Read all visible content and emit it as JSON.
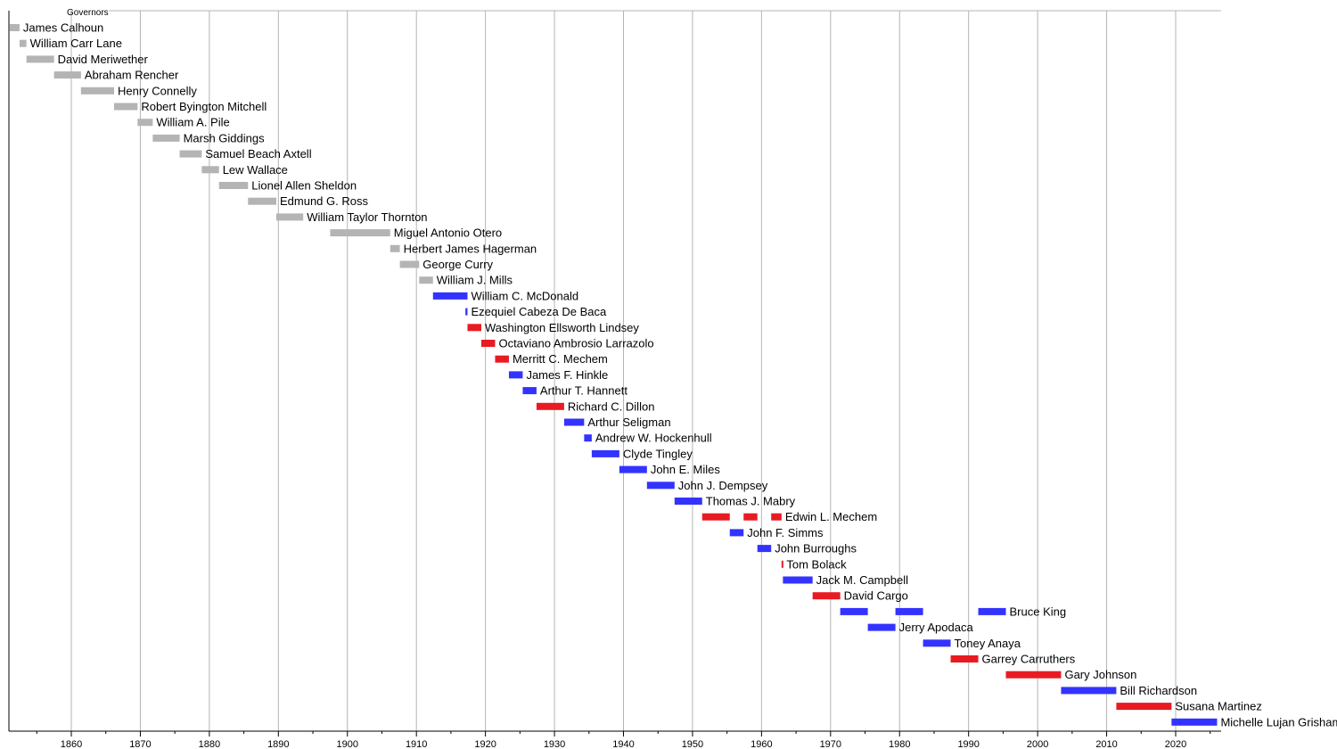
{
  "chart_data": {
    "type": "bar",
    "orientation": "horizontal",
    "title": "Governors",
    "xlim": [
      1849,
      2026
    ],
    "x_ticks": [
      1860,
      1870,
      1880,
      1890,
      1900,
      1910,
      1920,
      1930,
      1940,
      1950,
      1960,
      1970,
      1980,
      1990,
      2000,
      2010,
      2020
    ],
    "grid": true,
    "colors": {
      "gray": "#b4b4b4",
      "blue": "#3333ff",
      "red": "#e81b23",
      "grid": "#b4b4b4",
      "axis": "#000000"
    },
    "rows": [
      {
        "name": "James Calhoun",
        "color": "gray",
        "spans": [
          [
            1851,
            1852.5
          ]
        ]
      },
      {
        "name": "William Carr Lane",
        "color": "gray",
        "spans": [
          [
            1852.5,
            1853.5
          ]
        ]
      },
      {
        "name": "David Meriwether",
        "color": "gray",
        "spans": [
          [
            1853.5,
            1857.5
          ]
        ]
      },
      {
        "name": "Abraham Rencher",
        "color": "gray",
        "spans": [
          [
            1857.5,
            1861.4
          ]
        ]
      },
      {
        "name": "Henry Connelly",
        "color": "gray",
        "spans": [
          [
            1861.4,
            1866.2
          ]
        ]
      },
      {
        "name": "Robert Byington Mitchell",
        "color": "gray",
        "spans": [
          [
            1866.2,
            1869.6
          ]
        ]
      },
      {
        "name": "William A. Pile",
        "color": "gray",
        "spans": [
          [
            1869.6,
            1871.8
          ]
        ]
      },
      {
        "name": "Marsh Giddings",
        "color": "gray",
        "spans": [
          [
            1871.8,
            1875.7
          ]
        ]
      },
      {
        "name": "Samuel Beach Axtell",
        "color": "gray",
        "spans": [
          [
            1875.7,
            1878.9
          ]
        ]
      },
      {
        "name": "Lew Wallace",
        "color": "gray",
        "spans": [
          [
            1878.9,
            1881.4
          ]
        ]
      },
      {
        "name": "Lionel Allen Sheldon",
        "color": "gray",
        "spans": [
          [
            1881.4,
            1885.6
          ]
        ]
      },
      {
        "name": "Edmund G. Ross",
        "color": "gray",
        "spans": [
          [
            1885.6,
            1889.7
          ]
        ]
      },
      {
        "name": "William Taylor Thornton",
        "color": "gray",
        "spans": [
          [
            1889.7,
            1893.6
          ]
        ]
      },
      {
        "name": "Miguel Antonio Otero",
        "color": "gray",
        "spans": [
          [
            1897.5,
            1906.2
          ]
        ]
      },
      {
        "name": "Herbert James Hagerman",
        "color": "gray",
        "spans": [
          [
            1906.2,
            1907.6
          ]
        ]
      },
      {
        "name": "George Curry",
        "color": "gray",
        "spans": [
          [
            1907.6,
            1910.4
          ]
        ]
      },
      {
        "name": "William J. Mills",
        "color": "gray",
        "spans": [
          [
            1910.4,
            1912.4
          ]
        ]
      },
      {
        "name": "William C. McDonald",
        "color": "blue",
        "spans": [
          [
            1912.4,
            1917.4
          ]
        ]
      },
      {
        "name": "Ezequiel Cabeza De Baca",
        "color": "blue",
        "spans": [
          [
            1917.1,
            1917.4
          ]
        ]
      },
      {
        "name": "Washington Ellsworth Lindsey",
        "color": "red",
        "spans": [
          [
            1917.4,
            1919.4
          ]
        ]
      },
      {
        "name": "Octaviano Ambrosio Larrazolo",
        "color": "red",
        "spans": [
          [
            1919.4,
            1921.4
          ]
        ]
      },
      {
        "name": "Merritt C. Mechem",
        "color": "red",
        "spans": [
          [
            1921.4,
            1923.4
          ]
        ]
      },
      {
        "name": "James F. Hinkle",
        "color": "blue",
        "spans": [
          [
            1923.4,
            1925.4
          ]
        ]
      },
      {
        "name": "Arthur T. Hannett",
        "color": "blue",
        "spans": [
          [
            1925.4,
            1927.4
          ]
        ]
      },
      {
        "name": "Richard C. Dillon",
        "color": "red",
        "spans": [
          [
            1927.4,
            1931.4
          ]
        ]
      },
      {
        "name": "Arthur Seligman",
        "color": "blue",
        "spans": [
          [
            1931.4,
            1934.3
          ]
        ]
      },
      {
        "name": "Andrew W. Hockenhull",
        "color": "blue",
        "spans": [
          [
            1934.3,
            1935.4
          ]
        ]
      },
      {
        "name": "Clyde Tingley",
        "color": "blue",
        "spans": [
          [
            1935.4,
            1939.4
          ]
        ]
      },
      {
        "name": "John E. Miles",
        "color": "blue",
        "spans": [
          [
            1939.4,
            1943.4
          ]
        ]
      },
      {
        "name": "John J. Dempsey",
        "color": "blue",
        "spans": [
          [
            1943.4,
            1947.4
          ]
        ]
      },
      {
        "name": "Thomas J. Mabry",
        "color": "blue",
        "spans": [
          [
            1947.4,
            1951.4
          ]
        ]
      },
      {
        "name": "Edwin L. Mechem",
        "color": "red",
        "spans": [
          [
            1951.4,
            1955.4
          ],
          [
            1957.4,
            1959.4
          ],
          [
            1961.4,
            1962.9
          ]
        ]
      },
      {
        "name": "John F. Simms",
        "color": "blue",
        "spans": [
          [
            1955.4,
            1957.4
          ]
        ]
      },
      {
        "name": "John Burroughs",
        "color": "blue",
        "spans": [
          [
            1959.4,
            1961.4
          ]
        ]
      },
      {
        "name": "Tom Bolack",
        "color": "red",
        "spans": [
          [
            1962.9,
            1963.1
          ]
        ]
      },
      {
        "name": "Jack M. Campbell",
        "color": "blue",
        "spans": [
          [
            1963.1,
            1967.4
          ]
        ]
      },
      {
        "name": "David Cargo",
        "color": "red",
        "spans": [
          [
            1967.4,
            1971.4
          ]
        ]
      },
      {
        "name": "Bruce King",
        "color": "blue",
        "spans": [
          [
            1971.4,
            1975.4
          ],
          [
            1979.4,
            1983.4
          ],
          [
            1991.4,
            1995.4
          ]
        ]
      },
      {
        "name": "Jerry Apodaca",
        "color": "blue",
        "spans": [
          [
            1975.4,
            1979.4
          ]
        ]
      },
      {
        "name": "Toney Anaya",
        "color": "blue",
        "spans": [
          [
            1983.4,
            1987.4
          ]
        ]
      },
      {
        "name": "Garrey Carruthers",
        "color": "red",
        "spans": [
          [
            1987.4,
            1991.4
          ]
        ]
      },
      {
        "name": "Gary Johnson",
        "color": "red",
        "spans": [
          [
            1995.4,
            2003.4
          ]
        ]
      },
      {
        "name": "Bill Richardson",
        "color": "blue",
        "spans": [
          [
            2003.4,
            2011.4
          ]
        ]
      },
      {
        "name": "Susana Martinez",
        "color": "red",
        "spans": [
          [
            2011.4,
            2019.4
          ]
        ]
      },
      {
        "name": "Michelle Lujan Grisham",
        "color": "blue",
        "spans": [
          [
            2019.4,
            2026
          ]
        ]
      }
    ]
  }
}
